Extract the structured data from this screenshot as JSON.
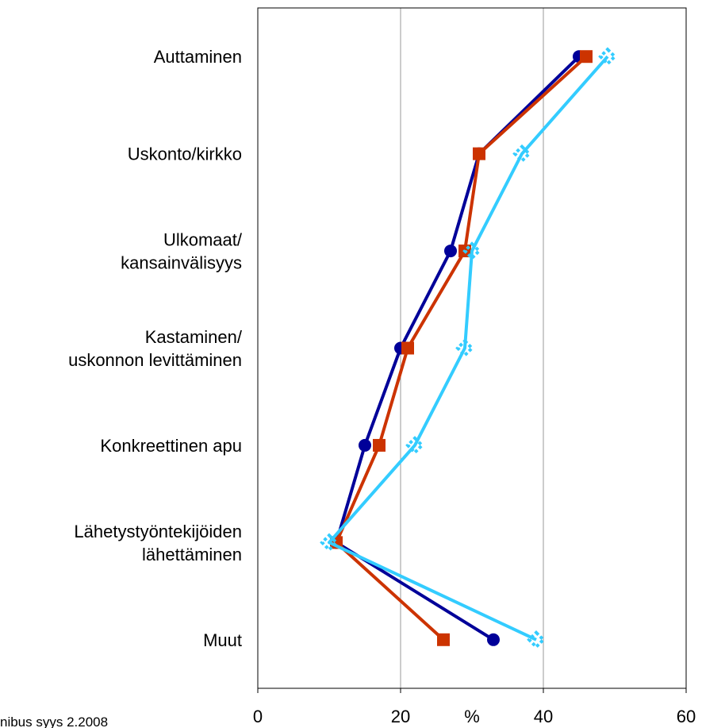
{
  "chart_data": {
    "type": "line",
    "categories": [
      [
        "Auttaminen"
      ],
      [
        "Uskonto/kirkko"
      ],
      [
        "Ulkomaat/",
        "kansainvälisyys"
      ],
      [
        "Kastaminen/",
        "uskonnon levittäminen"
      ],
      [
        "Konkreettinen apu"
      ],
      [
        "Lähetystyöntekijöiden",
        "lähettäminen"
      ],
      [
        "Muut"
      ]
    ],
    "series": [
      {
        "color": "#000099",
        "marker": "circle",
        "values": [
          45,
          31,
          27,
          20,
          15,
          11,
          33
        ]
      },
      {
        "color": "#cc3300",
        "marker": "square",
        "values": [
          46,
          31,
          29,
          21,
          17,
          11,
          26
        ]
      },
      {
        "color": "#33ccff",
        "marker": "diamond",
        "values": [
          49,
          37,
          30,
          29,
          22,
          10,
          39
        ]
      }
    ],
    "xlabel": "%",
    "xlim": [
      0,
      60
    ],
    "xticks": [
      0,
      20,
      40,
      60
    ],
    "grid": true,
    "source": "nibus syys 2.2008"
  }
}
